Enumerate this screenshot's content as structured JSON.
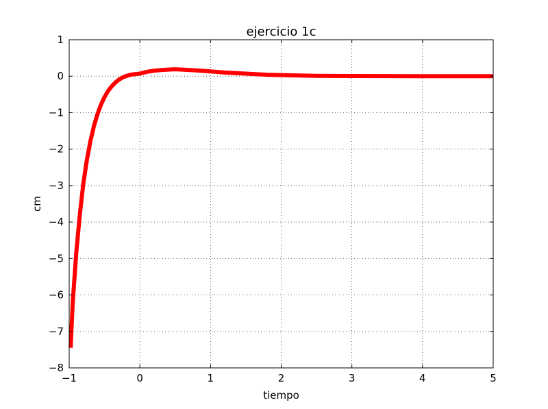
{
  "chart_data": {
    "type": "line",
    "title": "ejercicio 1c",
    "xlabel": "tiempo",
    "ylabel": "cm",
    "xlim": [
      -1,
      5
    ],
    "ylim": [
      -8,
      1
    ],
    "xticks": [
      -1,
      0,
      1,
      2,
      3,
      4,
      5
    ],
    "xtick_labels": [
      "−1",
      "0",
      "1",
      "2",
      "3",
      "4",
      "5"
    ],
    "yticks": [
      -8,
      -7,
      -6,
      -5,
      -4,
      -3,
      -2,
      -1,
      0,
      1
    ],
    "ytick_labels": [
      "−8",
      "−7",
      "−6",
      "−5",
      "−4",
      "−3",
      "−2",
      "−1",
      "0",
      "1"
    ],
    "grid": true,
    "series": [
      {
        "color": "#ff0000",
        "x": [
          -0.98,
          -0.95,
          -0.9,
          -0.85,
          -0.8,
          -0.75,
          -0.7,
          -0.65,
          -0.6,
          -0.55,
          -0.5,
          -0.45,
          -0.4,
          -0.35,
          -0.3,
          -0.25,
          -0.2,
          -0.15,
          -0.1,
          -0.05,
          0,
          0.1,
          0.2,
          0.3,
          0.4,
          0.5,
          0.6,
          0.8,
          1.0,
          1.2,
          1.5,
          1.8,
          2.0,
          2.5,
          3.0,
          3.5,
          4.0,
          4.5,
          5.0
        ],
        "y": [
          -7.45,
          -6.2,
          -4.85,
          -3.8,
          -2.95,
          -2.3,
          -1.78,
          -1.37,
          -1.04,
          -0.78,
          -0.57,
          -0.41,
          -0.28,
          -0.18,
          -0.1,
          -0.04,
          0.0,
          0.03,
          0.05,
          0.06,
          0.07,
          0.12,
          0.15,
          0.17,
          0.18,
          0.19,
          0.18,
          0.16,
          0.13,
          0.1,
          0.07,
          0.04,
          0.03,
          0.01,
          0.005,
          0.002,
          0.001,
          0.0,
          0.0
        ]
      }
    ]
  }
}
